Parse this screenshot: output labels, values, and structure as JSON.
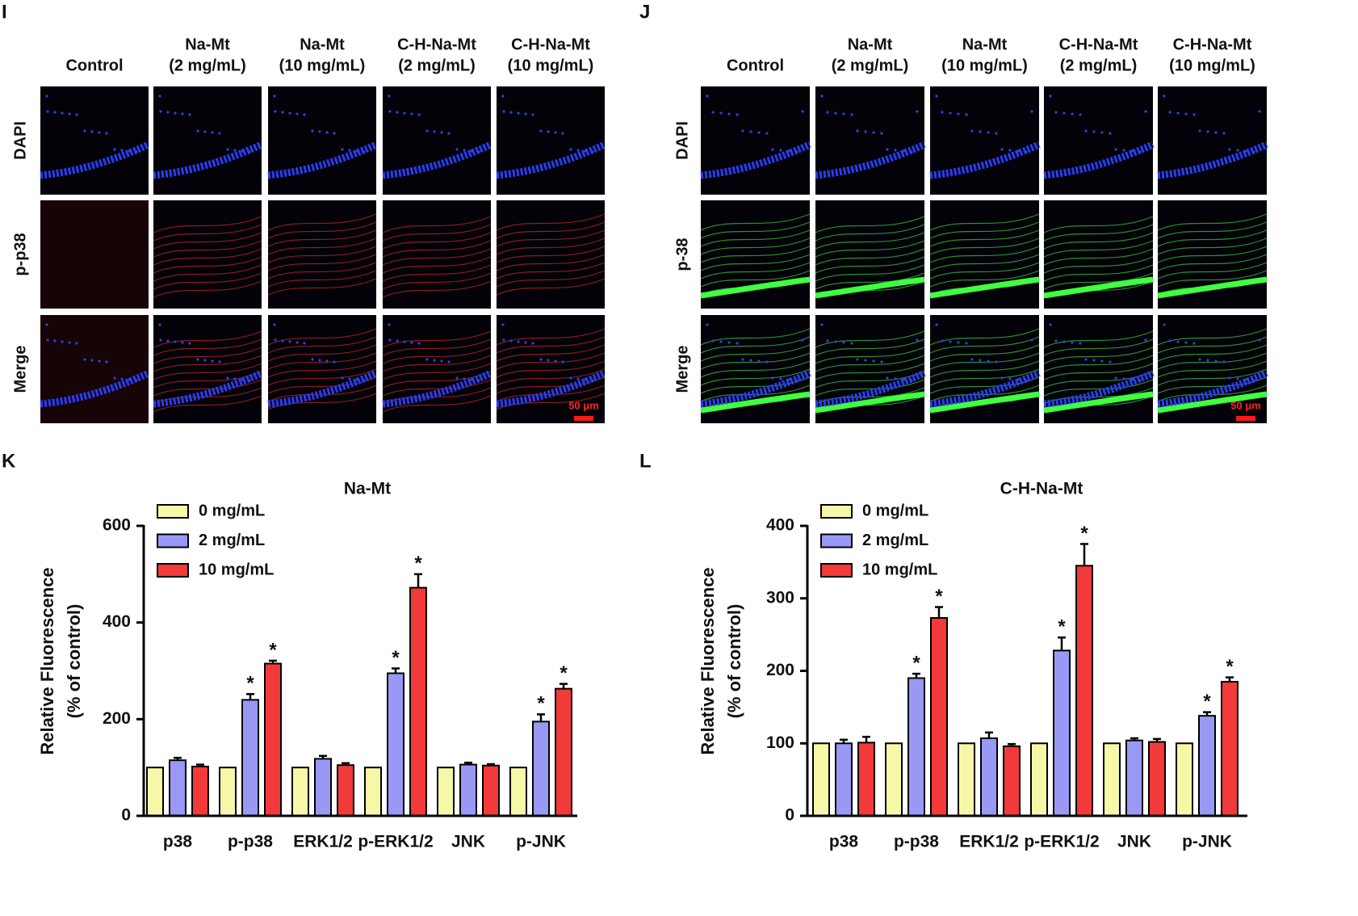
{
  "panels": [
    {
      "label": "I",
      "columns": [
        [
          "Control"
        ],
        [
          "Na-Mt",
          "(2 mg/mL)"
        ],
        [
          "Na-Mt",
          "(10 mg/mL)"
        ],
        [
          "C-H-Na-Mt",
          "(2 mg/mL)"
        ],
        [
          "C-H-Na-Mt",
          "(10 mg/mL)"
        ]
      ],
      "rows": [
        "DAPI",
        "p-p38",
        "Merge"
      ],
      "scale_bar": "50 μm"
    },
    {
      "label": "J",
      "columns": [
        [
          "Control"
        ],
        [
          "Na-Mt",
          "(2 mg/mL)"
        ],
        [
          "Na-Mt",
          "(10 mg/mL)"
        ],
        [
          "C-H-Na-Mt",
          "(2 mg/mL)"
        ],
        [
          "C-H-Na-Mt",
          "(10 mg/mL)"
        ]
      ],
      "rows": [
        "DAPI",
        "p-38",
        "Merge"
      ],
      "scale_bar": "50 μm"
    }
  ],
  "chart_data": [
    {
      "panel": "K",
      "type": "bar",
      "title": "Na-Mt",
      "ylabel": [
        "Relative Fluorescence",
        "(% of control)"
      ],
      "categories": [
        "p38",
        "p-p38",
        "ERK1/2",
        "p-ERK1/2",
        "JNK",
        "p-JNK"
      ],
      "series": [
        {
          "name": "0 mg/mL",
          "color": "#f7f7a8",
          "values": [
            100,
            100,
            100,
            100,
            100,
            100
          ]
        },
        {
          "name": "2 mg/mL",
          "color": "#9999f5",
          "values": [
            115,
            240,
            118,
            295,
            106,
            195
          ],
          "errors": [
            5,
            12,
            6,
            10,
            4,
            15
          ],
          "significance": [
            null,
            "*",
            null,
            "*",
            null,
            "*"
          ]
        },
        {
          "name": "10 mg/mL",
          "color": "#f23a3a",
          "values": [
            102,
            315,
            105,
            472,
            104,
            263
          ],
          "errors": [
            4,
            6,
            4,
            28,
            3,
            10
          ],
          "significance": [
            null,
            "*",
            null,
            "*",
            null,
            "*"
          ]
        }
      ],
      "ylim": [
        0,
        600
      ],
      "yticks": [
        0,
        200,
        400,
        600
      ],
      "legend": "upper left"
    },
    {
      "panel": "L",
      "type": "bar",
      "title": "C-H-Na-Mt",
      "ylabel": [
        "Relative Fluorescence",
        "(% of control)"
      ],
      "categories": [
        "p38",
        "p-p38",
        "ERK1/2",
        "p-ERK1/2",
        "JNK",
        "p-JNK"
      ],
      "series": [
        {
          "name": "0 mg/mL",
          "color": "#f7f7a8",
          "values": [
            100,
            100,
            100,
            100,
            100,
            100
          ]
        },
        {
          "name": "2 mg/mL",
          "color": "#9999f5",
          "values": [
            100,
            190,
            107,
            228,
            104,
            138
          ],
          "errors": [
            5,
            6,
            8,
            18,
            3,
            5
          ],
          "significance": [
            null,
            "*",
            null,
            "*",
            null,
            "*"
          ]
        },
        {
          "name": "10 mg/mL",
          "color": "#f23a3a",
          "values": [
            101,
            273,
            96,
            345,
            102,
            185
          ],
          "errors": [
            8,
            15,
            3,
            30,
            4,
            6
          ],
          "significance": [
            null,
            "*",
            null,
            "*",
            null,
            "*"
          ]
        }
      ],
      "ylim": [
        0,
        400
      ],
      "yticks": [
        0,
        100,
        200,
        300,
        400
      ],
      "legend": "upper left"
    }
  ]
}
